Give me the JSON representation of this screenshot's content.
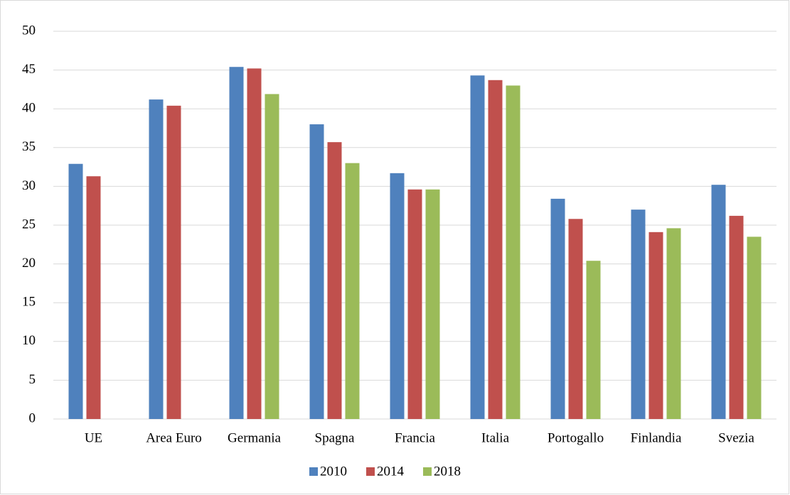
{
  "chart_data": {
    "type": "bar",
    "categories": [
      "UE",
      "Area Euro",
      "Germania",
      "Spagna",
      "Francia",
      "Italia",
      "Portogallo",
      "Finlandia",
      "Svezia"
    ],
    "series": [
      {
        "name": "2010",
        "color": "#4f81bd",
        "values": [
          32.9,
          41.2,
          45.4,
          38.0,
          31.7,
          44.3,
          28.4,
          27.0,
          30.2
        ]
      },
      {
        "name": "2014",
        "color": "#c0504d",
        "values": [
          31.3,
          40.4,
          45.2,
          35.7,
          29.6,
          43.7,
          25.8,
          24.1,
          26.2
        ]
      },
      {
        "name": "2018",
        "color": "#9bbb59",
        "values": [
          null,
          null,
          41.9,
          33.0,
          29.6,
          43.0,
          20.4,
          24.6,
          23.5
        ]
      }
    ],
    "ylim": [
      0,
      50
    ],
    "yticks": [
      0,
      5,
      10,
      15,
      20,
      25,
      30,
      35,
      40,
      45,
      50
    ],
    "grid": true,
    "legend": "bottom"
  }
}
